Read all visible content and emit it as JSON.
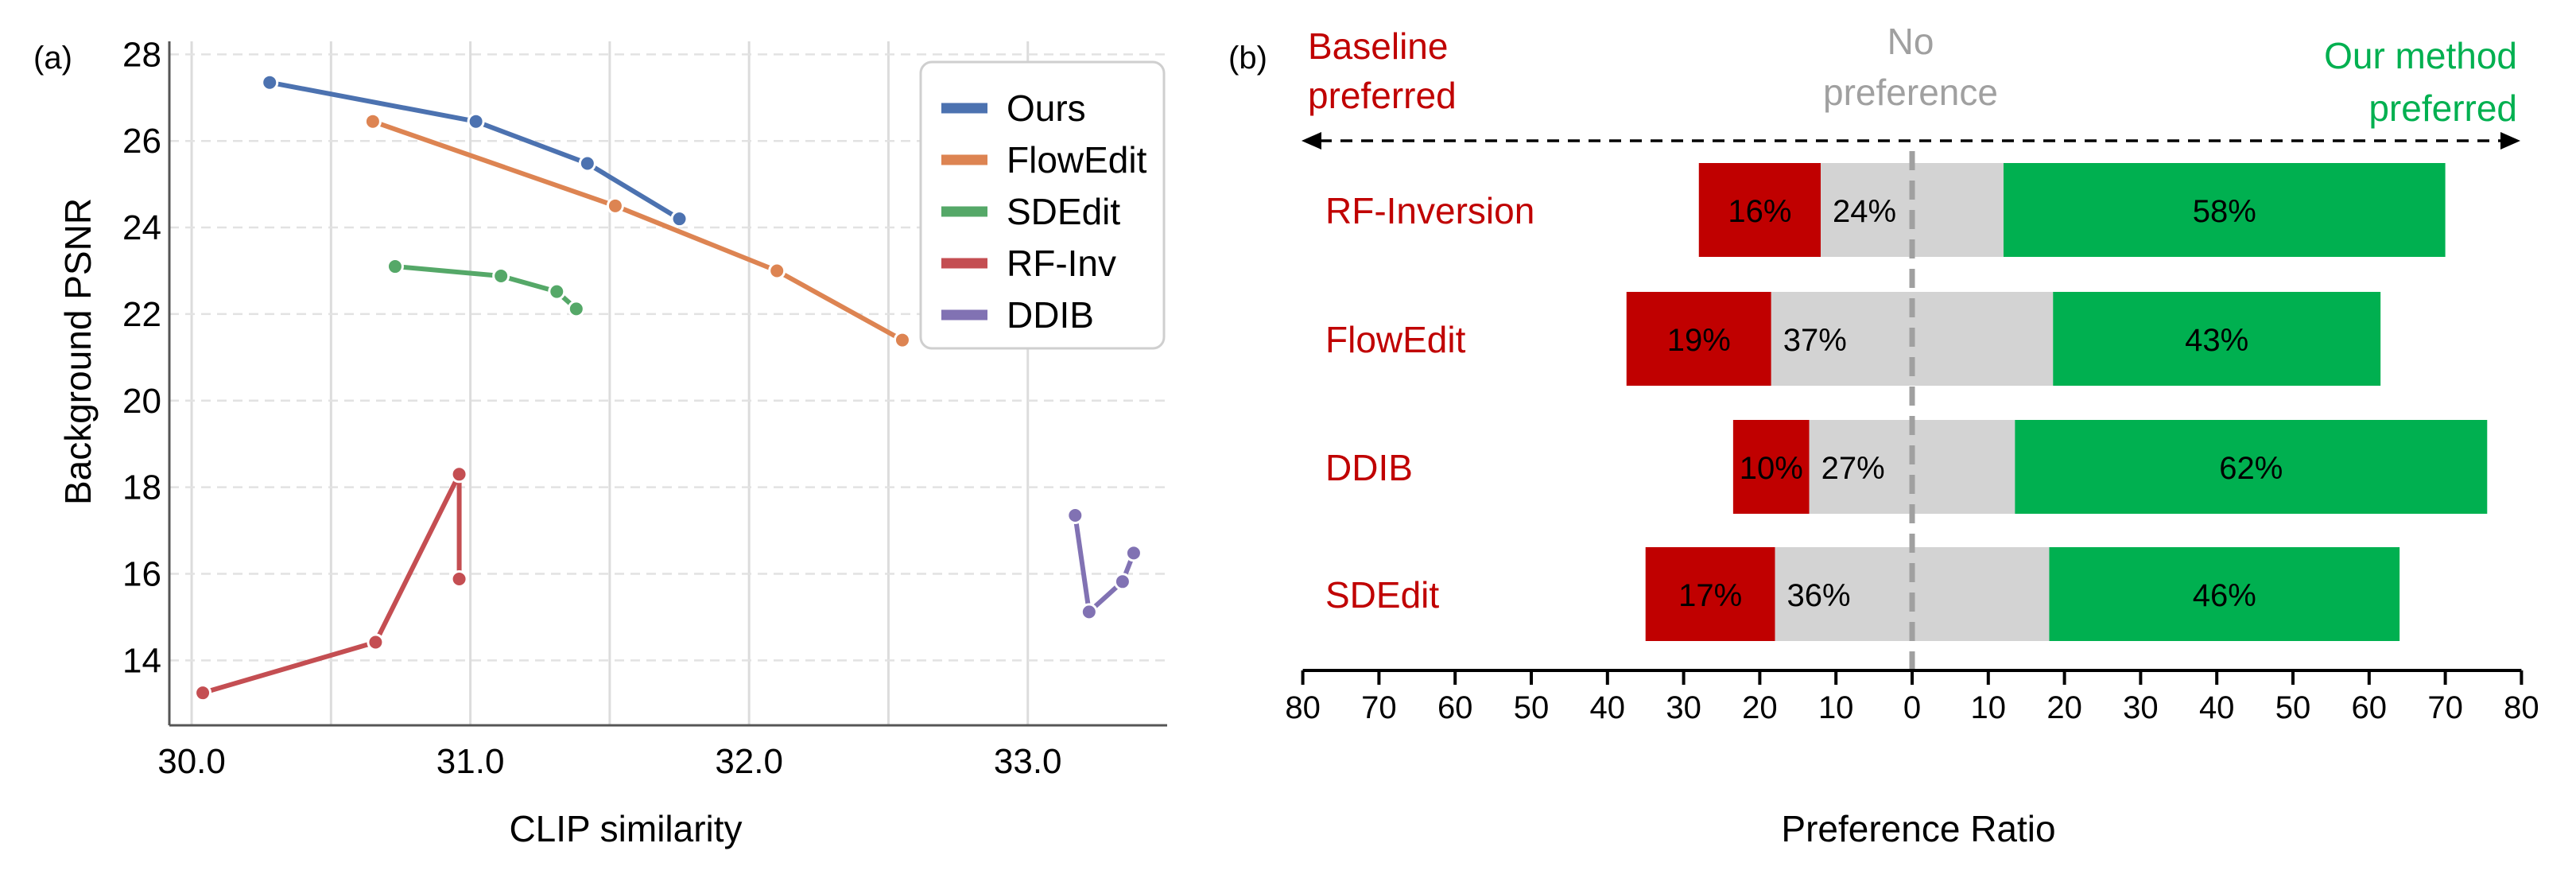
{
  "chart_data": [
    {
      "panel_label": "(a)",
      "type": "line",
      "xlabel": "CLIP similarity",
      "ylabel": "Background PSNR",
      "xlim": [
        29.92,
        33.5
      ],
      "ylim": [
        12.5,
        28.3
      ],
      "xticks": [
        30.0,
        31.0,
        32.0,
        33.0
      ],
      "xtick_labels": [
        "30.0",
        "31.0",
        "32.0",
        "33.0"
      ],
      "yticks": [
        14,
        16,
        18,
        20,
        22,
        24,
        26,
        28
      ],
      "ytick_labels": [
        "14",
        "16",
        "18",
        "20",
        "22",
        "24",
        "26",
        "28"
      ],
      "x_gridlines": [
        30.0,
        30.5,
        31.0,
        31.5,
        32.0,
        32.5,
        33.0
      ],
      "y_gridlines_dashed": [
        14,
        16,
        18,
        20,
        22,
        24,
        26,
        28
      ],
      "legend_position": "upper-right",
      "series": [
        {
          "name": "Ours",
          "color": "#4c72b0",
          "points": [
            [
              30.28,
              27.35
            ],
            [
              31.02,
              26.45
            ],
            [
              31.42,
              25.48
            ],
            [
              31.75,
              24.2
            ]
          ]
        },
        {
          "name": "FlowEdit",
          "color": "#dd8452",
          "points": [
            [
              30.65,
              26.45
            ],
            [
              31.52,
              24.5
            ],
            [
              32.1,
              23.0
            ],
            [
              32.55,
              21.4
            ]
          ]
        },
        {
          "name": "SDEdit",
          "color": "#55a868",
          "points": [
            [
              30.73,
              23.1
            ],
            [
              31.11,
              22.88
            ],
            [
              31.31,
              22.52
            ],
            [
              31.38,
              22.12
            ]
          ]
        },
        {
          "name": "RF-Inv",
          "color": "#c44e52",
          "points": [
            [
              30.04,
              13.25
            ],
            [
              30.66,
              14.42
            ],
            [
              30.96,
              18.3
            ],
            [
              30.96,
              15.88
            ]
          ]
        },
        {
          "name": "DDIB",
          "color": "#8172b3",
          "points": [
            [
              33.17,
              17.35
            ],
            [
              33.22,
              15.12
            ],
            [
              33.34,
              15.82
            ],
            [
              33.38,
              16.48
            ]
          ]
        }
      ]
    },
    {
      "panel_label": "(b)",
      "type": "bar",
      "orientation": "horizontal-diverging",
      "xlabel": "Preference Ratio",
      "xlim": [
        -80,
        80
      ],
      "xticks": [
        -80,
        -70,
        -60,
        -50,
        -40,
        -30,
        -20,
        -10,
        0,
        10,
        20,
        30,
        40,
        50,
        60,
        70,
        80
      ],
      "xtick_labels": [
        "80",
        "70",
        "60",
        "50",
        "40",
        "30",
        "20",
        "10",
        "0",
        "10",
        "20",
        "30",
        "40",
        "50",
        "60",
        "70",
        "80"
      ],
      "header_left": [
        "Baseline",
        "preferred"
      ],
      "header_center": [
        "No",
        "preference"
      ],
      "header_right": [
        "Our method",
        "preferred"
      ],
      "colors": {
        "baseline": "#c00000",
        "none": "#d3d3d3",
        "ours": "#00b050",
        "header_center": "#a0a0a0"
      },
      "categories": [
        "RF-Inversion",
        "FlowEdit",
        "DDIB",
        "SDEdit"
      ],
      "series": [
        {
          "name": "Baseline preferred",
          "values": [
            16,
            19,
            10,
            17
          ],
          "labels": [
            "16%",
            "19%",
            "10%",
            "17%"
          ]
        },
        {
          "name": "No preference",
          "values": [
            24,
            37,
            27,
            36
          ],
          "labels": [
            "24%",
            "37%",
            "27%",
            "36%"
          ]
        },
        {
          "name": "Our method preferred",
          "values": [
            58,
            43,
            62,
            46
          ],
          "labels": [
            "58%",
            "43%",
            "62%",
            "46%"
          ]
        }
      ]
    }
  ]
}
